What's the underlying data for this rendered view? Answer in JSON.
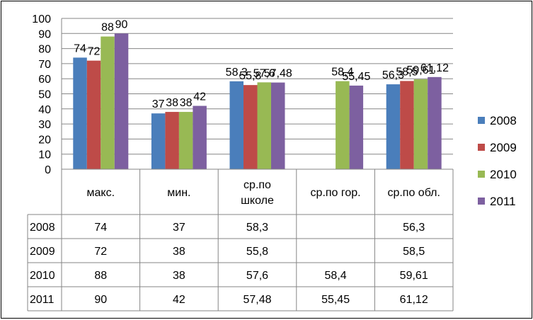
{
  "chart_data": {
    "type": "bar",
    "categories": [
      "макс.",
      "мин.",
      "ср.по школе",
      "ср.по гор.",
      "ср.по обл."
    ],
    "category_lines": [
      [
        "макс."
      ],
      [
        "мин."
      ],
      [
        "ср.по",
        "школе"
      ],
      [
        "ср.по гор."
      ],
      [
        "ср.по обл."
      ]
    ],
    "series": [
      {
        "name": "2008",
        "color": "#4a7ebb",
        "values": [
          74,
          37,
          58.3,
          null,
          56.3
        ],
        "labels": [
          "74",
          "37",
          "58,3",
          "",
          "56,3"
        ]
      },
      {
        "name": "2009",
        "color": "#be4b48",
        "values": [
          72,
          38,
          55.8,
          null,
          58.5
        ],
        "labels": [
          "72",
          "38",
          "55,8",
          "",
          "58,5"
        ]
      },
      {
        "name": "2010",
        "color": "#98b954",
        "values": [
          88,
          38,
          57.6,
          58.4,
          59.61
        ],
        "labels": [
          "88",
          "38",
          "57,6",
          "58,4",
          "59,61"
        ]
      },
      {
        "name": "2011",
        "color": "#7d60a0",
        "values": [
          90,
          42,
          57.48,
          55.45,
          61.12
        ],
        "labels": [
          "90",
          "42",
          "57,48",
          "55,45",
          "61,12"
        ]
      }
    ],
    "ylim": [
      0,
      100
    ],
    "yticks": [
      0,
      10,
      20,
      30,
      40,
      50,
      60,
      70,
      80,
      90,
      100
    ],
    "grid": true,
    "legend_position": "right",
    "data_table": true
  }
}
